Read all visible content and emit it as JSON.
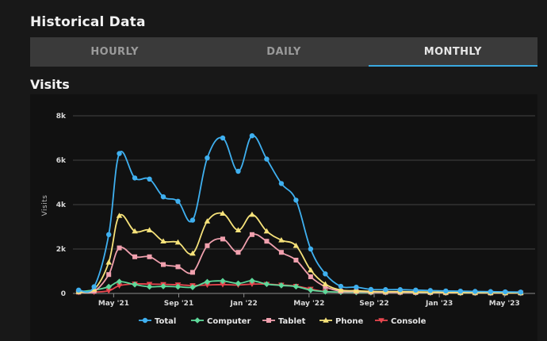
{
  "header": {
    "title": "Historical Data"
  },
  "tabs": [
    {
      "label": "HOURLY",
      "active": false
    },
    {
      "label": "DAILY",
      "active": false
    },
    {
      "label": "MONTHLY",
      "active": true
    }
  ],
  "section": {
    "title": "Visits"
  },
  "colors": {
    "Total": "#3fb0f0",
    "Computer": "#5ed89a",
    "Tablet": "#f0a0ae",
    "Phone": "#f6e27a",
    "Console": "#e8474f",
    "accent": "#39a9e0"
  },
  "chart_data": {
    "type": "line",
    "title": "Visits",
    "xlabel": "",
    "ylabel": "Visits",
    "ylim": [
      0,
      8000
    ],
    "yticks": [
      0,
      2000,
      4000,
      6000,
      8000
    ],
    "ytick_labels": [
      "0",
      "2k",
      "4k",
      "6k",
      "8k"
    ],
    "x_ticks": [
      {
        "index": 2,
        "label": "May '21"
      },
      {
        "index": 6,
        "label": "Sep '21"
      },
      {
        "index": 10,
        "label": "Jan '22"
      },
      {
        "index": 14,
        "label": "May '22"
      },
      {
        "index": 18,
        "label": "Sep '22"
      },
      {
        "index": 22,
        "label": "Jan '23"
      },
      {
        "index": 26,
        "label": "May '23"
      }
    ],
    "x_positions": [
      -0.15,
      0.8,
      1.7,
      2.35,
      3.3,
      4.2,
      5.05,
      5.95,
      6.85,
      7.75,
      8.7,
      9.65,
      10.5,
      11.4,
      12.3,
      13.2,
      14.1,
      15.0,
      15.95,
      16.9,
      17.8,
      18.7,
      19.6,
      20.55,
      21.45,
      22.4,
      23.3,
      24.2,
      25.15,
      26.05,
      27.0
    ],
    "series": [
      {
        "name": "Total",
        "marker": "circle",
        "values": [
          150,
          300,
          2650,
          6300,
          5200,
          5150,
          4350,
          4150,
          3300,
          6100,
          7000,
          5500,
          7100,
          6050,
          4950,
          4200,
          2000,
          880,
          320,
          280,
          180,
          170,
          170,
          150,
          130,
          110,
          100,
          90,
          80,
          70,
          60
        ]
      },
      {
        "name": "Computer",
        "marker": "diamond",
        "values": [
          80,
          150,
          300,
          530,
          400,
          300,
          320,
          300,
          280,
          520,
          560,
          450,
          570,
          420,
          360,
          310,
          150,
          80,
          60,
          50,
          40,
          40,
          40,
          30,
          30,
          25,
          20,
          20,
          20,
          15,
          15
        ]
      },
      {
        "name": "Tablet",
        "marker": "square",
        "values": [
          60,
          100,
          850,
          2050,
          1650,
          1650,
          1300,
          1200,
          950,
          2150,
          2450,
          1850,
          2650,
          2350,
          1850,
          1500,
          750,
          300,
          100,
          90,
          60,
          50,
          50,
          40,
          40,
          30,
          30,
          25,
          20,
          20,
          20
        ]
      },
      {
        "name": "Phone",
        "marker": "triangle",
        "values": [
          80,
          180,
          1400,
          3500,
          2800,
          2850,
          2350,
          2300,
          1800,
          3250,
          3600,
          2850,
          3550,
          2800,
          2400,
          2150,
          1050,
          420,
          150,
          120,
          90,
          80,
          80,
          70,
          60,
          50,
          40,
          40,
          35,
          30,
          30
        ]
      },
      {
        "name": "Console",
        "marker": "triangle-down",
        "values": [
          50,
          60,
          120,
          350,
          430,
          420,
          410,
          390,
          360,
          380,
          400,
          380,
          420,
          420,
          380,
          330,
          200,
          80,
          60,
          50,
          40,
          40,
          35,
          30,
          30,
          25,
          20,
          20,
          20,
          15,
          15
        ]
      }
    ],
    "legend": [
      "Total",
      "Computer",
      "Tablet",
      "Phone",
      "Console"
    ],
    "legend_position": "bottom",
    "grid": true
  }
}
